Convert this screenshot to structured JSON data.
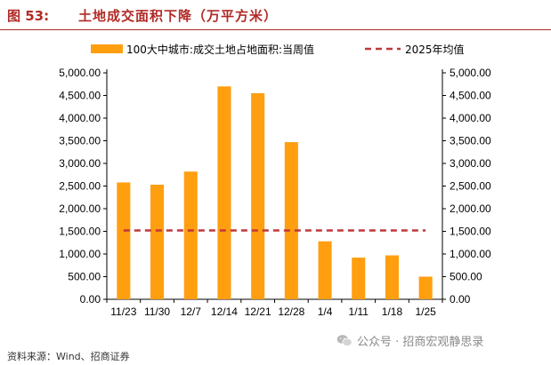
{
  "header": {
    "fig_label": "图 53:",
    "title": "土地成交面积下降（万平方米）"
  },
  "source": "资料来源：Wind、招商证券",
  "watermark": "公众号 · 招商宏观静思录",
  "colors": {
    "accent": "#b12b27",
    "bar": "#ff9f10",
    "average_line": "#c0363c"
  },
  "chart_data": {
    "type": "bar",
    "title": "土地成交面积下降（万平方米）",
    "categories": [
      "11/23",
      "11/30",
      "12/7",
      "12/14",
      "12/21",
      "12/28",
      "1/4",
      "1/11",
      "1/18",
      "1/25"
    ],
    "series": [
      {
        "name": "100大中城市:成交土地占地面积:当周值",
        "type": "bar",
        "values": [
          2580,
          2530,
          2820,
          4700,
          4550,
          3470,
          1280,
          920,
          970,
          500
        ]
      },
      {
        "name": "2025年均值",
        "type": "dashed-line",
        "values": [
          1520,
          1520,
          1520,
          1520,
          1520,
          1520,
          1520,
          1520,
          1520,
          1520
        ]
      }
    ],
    "ylim": [
      0,
      5000
    ],
    "yticks": [
      "0.00",
      "500.00",
      "1,000.00",
      "1,500.00",
      "2,000.00",
      "2,500.00",
      "3,000.00",
      "3,500.00",
      "4,000.00",
      "4,500.00",
      "5,000.00"
    ],
    "ytick_values": [
      0,
      500,
      1000,
      1500,
      2000,
      2500,
      3000,
      3500,
      4000,
      4500,
      5000
    ],
    "dual_y_axis": true,
    "grid": false,
    "legend_position": "top"
  }
}
